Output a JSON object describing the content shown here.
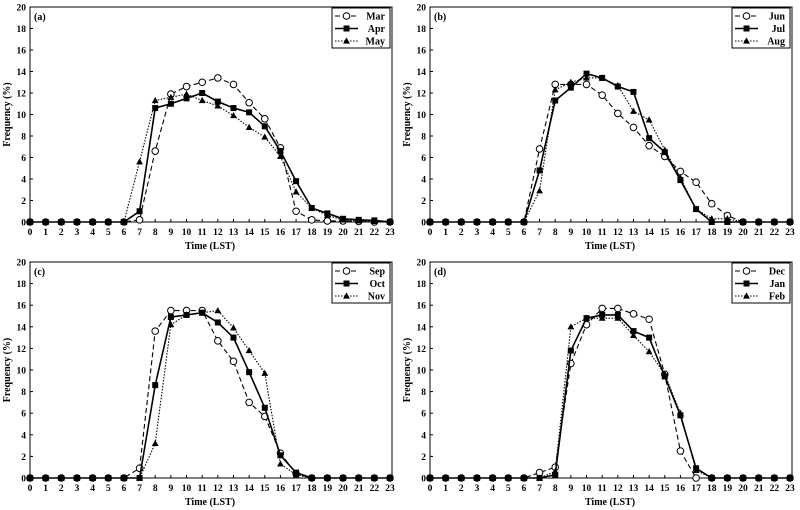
{
  "chart_data": [
    {
      "type": "line",
      "panel_label": "(a)",
      "xlabel": "Time (LST)",
      "ylabel": "Frequency (%)",
      "xlim": [
        0,
        23
      ],
      "ylim": [
        0,
        20
      ],
      "yticks": [
        0,
        2,
        4,
        6,
        8,
        10,
        12,
        14,
        16,
        18,
        20
      ],
      "x": [
        0,
        1,
        2,
        3,
        4,
        5,
        6,
        7,
        8,
        9,
        10,
        11,
        12,
        13,
        14,
        15,
        16,
        17,
        18,
        19,
        20,
        21,
        22,
        23
      ],
      "legend_position": "top-right",
      "grid": false,
      "series": [
        {
          "name": "Mar",
          "style": "dashed-open-circle",
          "values": [
            0,
            0,
            0,
            0,
            0,
            0,
            0,
            0.2,
            6.6,
            11.9,
            12.6,
            13.0,
            13.4,
            12.8,
            11.1,
            9.6,
            6.9,
            1.0,
            0.2,
            0.1,
            0.1,
            0.05,
            0,
            0
          ]
        },
        {
          "name": "Apr",
          "style": "solid-filled-square",
          "values": [
            0,
            0,
            0,
            0,
            0,
            0,
            0,
            1.0,
            10.6,
            11.0,
            11.5,
            12.0,
            11.2,
            10.6,
            10.2,
            8.9,
            6.6,
            3.8,
            1.3,
            0.8,
            0.3,
            0.2,
            0.15,
            0
          ]
        },
        {
          "name": "May",
          "style": "dotted-filled-triangle",
          "values": [
            0,
            0,
            0,
            0,
            0,
            0,
            0,
            5.6,
            11.3,
            11.6,
            11.9,
            11.3,
            10.8,
            9.9,
            8.8,
            7.9,
            6.1,
            2.8,
            1.3,
            0.6,
            0.2,
            0.1,
            0.05,
            0
          ]
        }
      ]
    },
    {
      "type": "line",
      "panel_label": "(b)",
      "xlabel": "Time (LST)",
      "ylabel": "Frequency (%)",
      "xlim": [
        0,
        23
      ],
      "ylim": [
        0,
        20
      ],
      "yticks": [
        0,
        2,
        4,
        6,
        8,
        10,
        12,
        14,
        16,
        18,
        20
      ],
      "x": [
        0,
        1,
        2,
        3,
        4,
        5,
        6,
        7,
        8,
        9,
        10,
        11,
        12,
        13,
        14,
        15,
        16,
        17,
        18,
        19,
        20,
        21,
        22,
        23
      ],
      "legend_position": "top-right",
      "grid": false,
      "series": [
        {
          "name": "Jun",
          "style": "dashed-open-circle",
          "values": [
            0,
            0,
            0,
            0,
            0,
            0,
            0,
            6.8,
            12.8,
            12.8,
            12.8,
            11.8,
            10.1,
            8.8,
            7.1,
            6.1,
            4.7,
            3.7,
            1.7,
            0.6,
            0,
            0,
            0,
            0
          ]
        },
        {
          "name": "Jul",
          "style": "solid-filled-square",
          "values": [
            0,
            0,
            0,
            0,
            0,
            0,
            0,
            4.8,
            11.3,
            12.5,
            13.8,
            13.4,
            12.6,
            12.1,
            7.8,
            6.5,
            3.9,
            1.2,
            0,
            0,
            0,
            0,
            0,
            0
          ]
        },
        {
          "name": "Aug",
          "style": "dotted-filled-triangle",
          "values": [
            0,
            0,
            0,
            0,
            0,
            0,
            0,
            2.9,
            12.3,
            13.0,
            13.4,
            13.4,
            12.7,
            10.3,
            9.5,
            6.7,
            4.1,
            1.2,
            0.3,
            0.3,
            0,
            0,
            0,
            0
          ]
        }
      ]
    },
    {
      "type": "line",
      "panel_label": "(c)",
      "xlabel": "Time (LST)",
      "ylabel": "Frequency (%)",
      "xlim": [
        0,
        23
      ],
      "ylim": [
        0,
        20
      ],
      "yticks": [
        0,
        2,
        4,
        6,
        8,
        10,
        12,
        14,
        16,
        18,
        20
      ],
      "x": [
        0,
        1,
        2,
        3,
        4,
        5,
        6,
        7,
        8,
        9,
        10,
        11,
        12,
        13,
        14,
        15,
        16,
        17,
        18,
        19,
        20,
        21,
        22,
        23
      ],
      "legend_position": "top-right",
      "grid": false,
      "series": [
        {
          "name": "Sep",
          "style": "dashed-open-circle",
          "values": [
            0,
            0,
            0,
            0,
            0,
            0,
            0,
            0.9,
            13.6,
            15.5,
            15.5,
            15.5,
            12.7,
            10.8,
            7.0,
            5.7,
            2.3,
            0.4,
            0,
            0,
            0,
            0,
            0,
            0
          ]
        },
        {
          "name": "Oct",
          "style": "solid-filled-square",
          "values": [
            0,
            0,
            0,
            0,
            0,
            0,
            0,
            0,
            8.6,
            14.9,
            15.1,
            15.3,
            14.4,
            13.0,
            9.8,
            6.5,
            2.1,
            0.5,
            0,
            0,
            0,
            0,
            0,
            0
          ]
        },
        {
          "name": "Nov",
          "style": "dotted-filled-triangle",
          "values": [
            0,
            0,
            0,
            0,
            0,
            0,
            0,
            0,
            3.2,
            14.2,
            15.1,
            15.3,
            15.5,
            13.9,
            11.8,
            9.7,
            1.3,
            0.3,
            0,
            0,
            0,
            0,
            0,
            0
          ]
        }
      ]
    },
    {
      "type": "line",
      "panel_label": "(d)",
      "xlabel": "Time (LST)",
      "ylabel": "Frequency (%)",
      "xlim": [
        0,
        23
      ],
      "ylim": [
        0,
        20
      ],
      "yticks": [
        0,
        2,
        4,
        6,
        8,
        10,
        12,
        14,
        16,
        18,
        20
      ],
      "x": [
        0,
        1,
        2,
        3,
        4,
        5,
        6,
        7,
        8,
        9,
        10,
        11,
        12,
        13,
        14,
        15,
        16,
        17,
        18,
        19,
        20,
        21,
        22,
        23
      ],
      "legend_position": "top-right",
      "grid": false,
      "series": [
        {
          "name": "Dec",
          "style": "dashed-open-circle",
          "values": [
            0,
            0,
            0,
            0,
            0,
            0,
            0,
            0.5,
            1.0,
            10.6,
            14.2,
            15.7,
            15.7,
            15.2,
            14.7,
            9.6,
            2.5,
            0,
            0,
            0,
            0,
            0,
            0,
            0
          ]
        },
        {
          "name": "Jan",
          "style": "solid-filled-square",
          "values": [
            0,
            0,
            0,
            0,
            0,
            0,
            0,
            0,
            0.3,
            11.8,
            14.8,
            15.1,
            15.1,
            13.6,
            13.0,
            9.4,
            5.8,
            0.9,
            0,
            0,
            0,
            0,
            0,
            0
          ]
        },
        {
          "name": "Feb",
          "style": "dotted-filled-triangle",
          "values": [
            0,
            0,
            0,
            0,
            0,
            0,
            0,
            0,
            0.6,
            14.0,
            14.8,
            14.8,
            14.8,
            13.2,
            11.7,
            9.6,
            6.0,
            0.7,
            0,
            0,
            0,
            0,
            0,
            0
          ]
        }
      ]
    }
  ]
}
